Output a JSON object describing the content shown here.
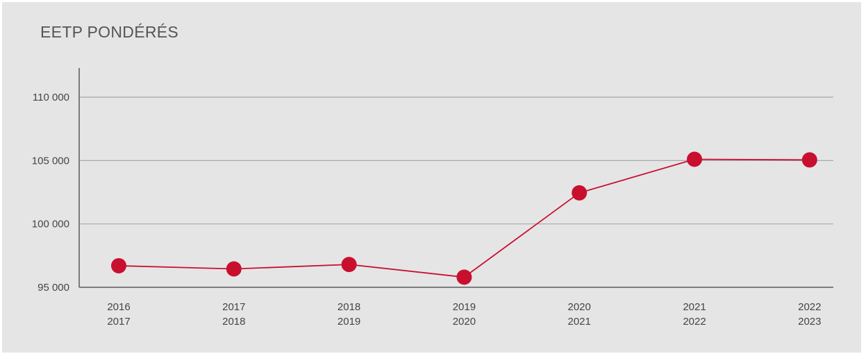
{
  "chart_data": {
    "type": "line",
    "title": "EETP PONDÉRÉS",
    "xlabel": "",
    "ylabel": "",
    "categories": [
      [
        "2016",
        "2017"
      ],
      [
        "2017",
        "2018"
      ],
      [
        "2018",
        "2019"
      ],
      [
        "2019",
        "2020"
      ],
      [
        "2020",
        "2021"
      ],
      [
        "2021",
        "2022"
      ],
      [
        "2022",
        "2023"
      ]
    ],
    "series": [
      {
        "values": [
          96700,
          96450,
          96800,
          95800,
          102450,
          105100,
          105050
        ]
      }
    ],
    "yticks": [
      {
        "value": 95000,
        "label": "95 000"
      },
      {
        "value": 100000,
        "label": "100 000"
      },
      {
        "value": 105000,
        "label": "105 000"
      },
      {
        "value": 110000,
        "label": "110 000"
      }
    ],
    "ylim": [
      95000,
      112300
    ],
    "grid": true,
    "legend": "none",
    "colors": {
      "series": "#c8102e",
      "grid": "#a8a8a8",
      "axis": "#6e6e6e",
      "background": "#e5e5e6"
    }
  }
}
